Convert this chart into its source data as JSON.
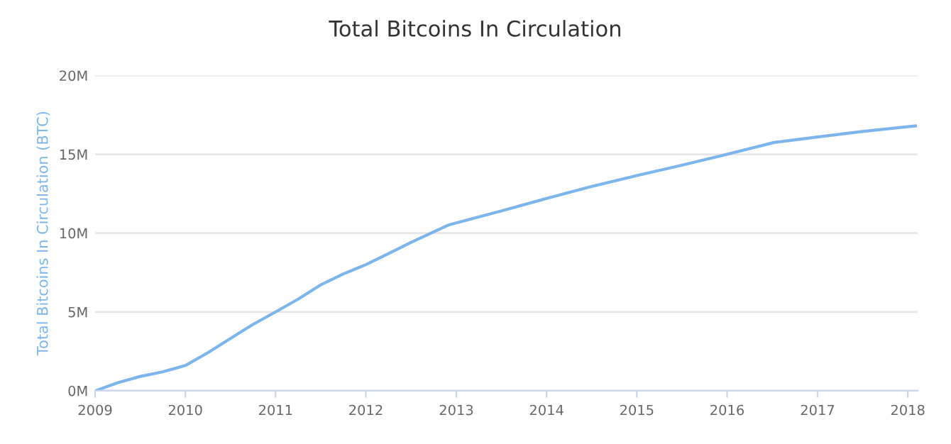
{
  "chart_data": {
    "type": "line",
    "title": "Total Bitcoins In Circulation",
    "ylabel": "Total Bitcoins In Circulation (BTC)",
    "x": [
      "2009-01-03",
      "2009-04",
      "2009-07",
      "2009-10",
      "2010-01",
      "2010-04",
      "2010-07",
      "2010-10",
      "2011-01",
      "2011-04",
      "2011-07",
      "2011-10",
      "2012-01",
      "2012-04",
      "2012-07",
      "2012-11-28",
      "2013-01",
      "2013-07",
      "2014-01",
      "2014-07",
      "2015-01",
      "2015-07",
      "2016-01",
      "2016-07-09",
      "2017-01",
      "2017-07",
      "2018-01",
      "2018-02-01"
    ],
    "series": [
      {
        "color": "#7cb5ec",
        "values": [
          0,
          500000,
          900000,
          1200000,
          1600000,
          2400000,
          3300000,
          4200000,
          5000000,
          5800000,
          6700000,
          7400000,
          8000000,
          8700000,
          9400000,
          10500000,
          10650000,
          11400000,
          12200000,
          12950000,
          13650000,
          14300000,
          15000000,
          15750000,
          16100000,
          16450000,
          16750000,
          16800000
        ]
      }
    ],
    "xlim": [
      "2009-01-01",
      "2018-02-10"
    ],
    "xticks": [
      {
        "value": "2009-01-01",
        "label": "2009"
      },
      {
        "value": "2010-01-01",
        "label": "2010"
      },
      {
        "value": "2011-01-01",
        "label": "2011"
      },
      {
        "value": "2012-01-01",
        "label": "2012"
      },
      {
        "value": "2013-01-01",
        "label": "2013"
      },
      {
        "value": "2014-01-01",
        "label": "2014"
      },
      {
        "value": "2015-01-01",
        "label": "2015"
      },
      {
        "value": "2016-01-01",
        "label": "2016"
      },
      {
        "value": "2017-01-01",
        "label": "2017"
      },
      {
        "value": "2018-01-01",
        "label": "2018"
      }
    ],
    "ylim": [
      0,
      20000000
    ],
    "yticks": [
      {
        "value": 0,
        "label": "0M"
      },
      {
        "value": 5000000,
        "label": "5M"
      },
      {
        "value": 10000000,
        "label": "10M"
      },
      {
        "value": 15000000,
        "label": "15M"
      },
      {
        "value": 20000000,
        "label": "20M"
      }
    ],
    "grid": "y",
    "legend": false
  }
}
